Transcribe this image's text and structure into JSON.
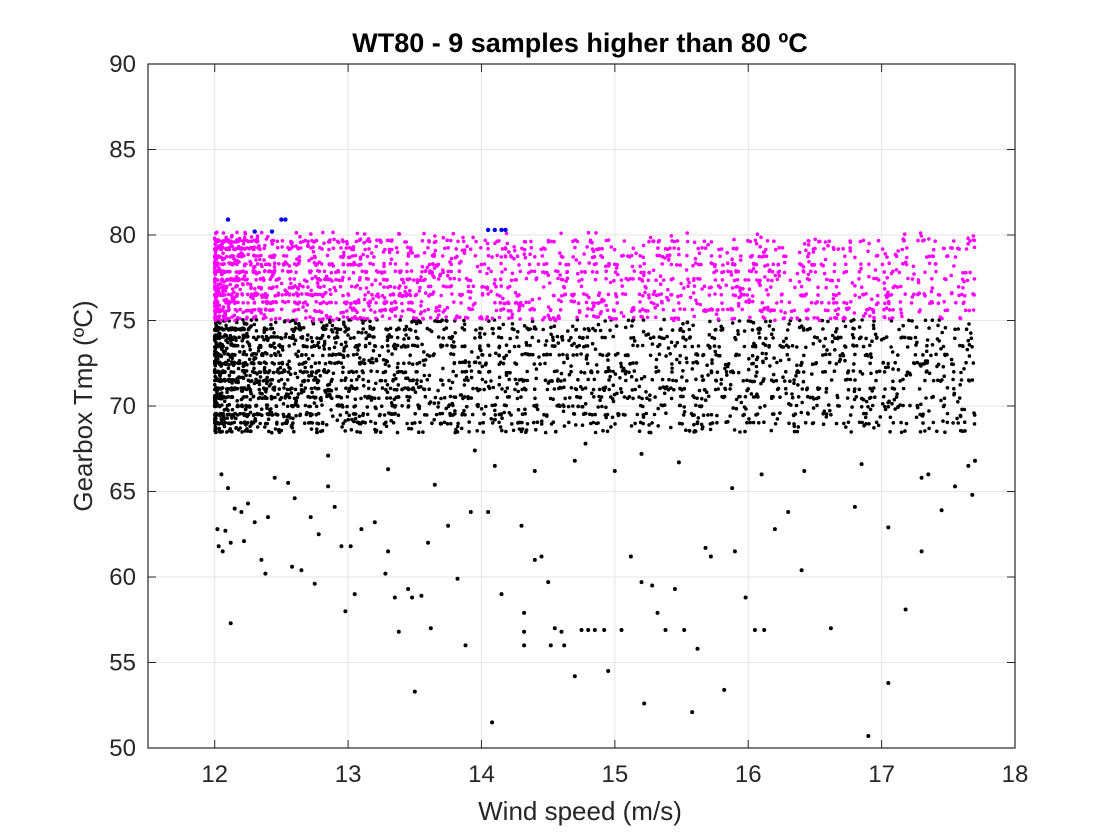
{
  "chart_data": {
    "type": "scatter",
    "title": "WT80 - 9 samples higher than 80 ºC",
    "xlabel": "Wind speed (m/s)",
    "ylabel": "Gearbox Tmp (ºC)",
    "xlim": [
      11.5,
      18
    ],
    "ylim": [
      50,
      90
    ],
    "xticks": [
      12,
      13,
      14,
      15,
      16,
      17,
      18
    ],
    "yticks": [
      50,
      55,
      60,
      65,
      70,
      75,
      80,
      85,
      90
    ],
    "grid": true,
    "series": [
      {
        "color": "#000000",
        "dense_region": {
          "x": [
            12.0,
            17.7
          ],
          "y": [
            68.5,
            75.0
          ]
        },
        "sparse_points": [
          [
            12.05,
            66.0
          ],
          [
            12.1,
            65.2
          ],
          [
            12.15,
            64.0
          ],
          [
            12.2,
            63.8
          ],
          [
            12.25,
            64.3
          ],
          [
            12.3,
            63.2
          ],
          [
            12.02,
            62.8
          ],
          [
            12.08,
            62.7
          ],
          [
            12.12,
            62.0
          ],
          [
            12.03,
            61.8
          ],
          [
            12.06,
            61.5
          ],
          [
            12.22,
            62.1
          ],
          [
            12.35,
            61.0
          ],
          [
            12.38,
            60.2
          ],
          [
            12.58,
            60.6
          ],
          [
            12.65,
            60.4
          ],
          [
            12.75,
            59.6
          ],
          [
            12.12,
            57.3
          ],
          [
            12.4,
            63.5
          ],
          [
            12.45,
            65.8
          ],
          [
            12.55,
            65.5
          ],
          [
            12.6,
            64.6
          ],
          [
            12.72,
            63.5
          ],
          [
            12.78,
            62.5
          ],
          [
            12.85,
            65.3
          ],
          [
            12.9,
            64.1
          ],
          [
            12.95,
            61.8
          ],
          [
            12.98,
            58.0
          ],
          [
            13.05,
            59.0
          ],
          [
            13.02,
            61.8
          ],
          [
            13.1,
            62.8
          ],
          [
            13.2,
            63.2
          ],
          [
            13.28,
            60.2
          ],
          [
            13.3,
            61.5
          ],
          [
            13.35,
            58.8
          ],
          [
            13.38,
            56.8
          ],
          [
            13.45,
            59.3
          ],
          [
            13.5,
            53.3
          ],
          [
            13.48,
            58.8
          ],
          [
            13.55,
            58.9
          ],
          [
            13.6,
            62.0
          ],
          [
            13.62,
            57.0
          ],
          [
            13.75,
            63.0
          ],
          [
            13.82,
            59.9
          ],
          [
            13.88,
            56.0
          ],
          [
            13.92,
            63.8
          ],
          [
            14.05,
            63.8
          ],
          [
            14.08,
            51.5
          ],
          [
            14.15,
            59.0
          ],
          [
            14.3,
            63.0
          ],
          [
            14.32,
            57.9
          ],
          [
            14.32,
            56.8
          ],
          [
            14.32,
            56.0
          ],
          [
            14.4,
            61.0
          ],
          [
            14.45,
            61.2
          ],
          [
            14.5,
            59.7
          ],
          [
            14.52,
            56.0
          ],
          [
            14.55,
            57.0
          ],
          [
            14.6,
            56.8
          ],
          [
            14.62,
            56.0
          ],
          [
            14.7,
            54.2
          ],
          [
            14.75,
            56.9
          ],
          [
            14.8,
            56.9
          ],
          [
            14.85,
            56.9
          ],
          [
            14.92,
            56.9
          ],
          [
            14.95,
            54.5
          ],
          [
            15.05,
            56.9
          ],
          [
            15.12,
            61.2
          ],
          [
            15.2,
            59.7
          ],
          [
            15.22,
            52.6
          ],
          [
            15.28,
            59.5
          ],
          [
            15.32,
            57.9
          ],
          [
            15.38,
            56.9
          ],
          [
            15.45,
            59.3
          ],
          [
            15.52,
            56.9
          ],
          [
            15.58,
            52.1
          ],
          [
            15.62,
            55.8
          ],
          [
            15.68,
            61.7
          ],
          [
            15.72,
            61.2
          ],
          [
            15.82,
            53.4
          ],
          [
            15.9,
            61.5
          ],
          [
            15.98,
            58.8
          ],
          [
            16.05,
            56.9
          ],
          [
            16.12,
            56.9
          ],
          [
            16.2,
            62.8
          ],
          [
            16.3,
            63.8
          ],
          [
            16.4,
            60.4
          ],
          [
            16.62,
            57.0
          ],
          [
            16.8,
            64.1
          ],
          [
            16.9,
            50.7
          ],
          [
            17.05,
            53.8
          ],
          [
            17.05,
            62.9
          ],
          [
            17.18,
            58.1
          ],
          [
            17.3,
            61.5
          ],
          [
            17.45,
            63.9
          ],
          [
            17.55,
            65.3
          ],
          [
            17.65,
            66.5
          ],
          [
            17.7,
            66.8
          ],
          [
            17.68,
            64.8
          ],
          [
            17.35,
            66.0
          ],
          [
            17.3,
            65.8
          ],
          [
            16.85,
            66.6
          ],
          [
            16.42,
            66.2
          ],
          [
            15.88,
            65.2
          ],
          [
            15.48,
            66.7
          ],
          [
            15.2,
            67.2
          ],
          [
            14.78,
            67.8
          ],
          [
            14.7,
            66.8
          ],
          [
            14.4,
            66.2
          ],
          [
            14.1,
            66.5
          ],
          [
            13.65,
            65.4
          ],
          [
            13.3,
            66.3
          ],
          [
            12.85,
            67.1
          ],
          [
            13.95,
            67.4
          ],
          [
            15.0,
            66.2
          ],
          [
            16.1,
            66.0
          ]
        ]
      },
      {
        "color": "#ff00ff",
        "dense_region": {
          "x": [
            12.0,
            17.7
          ],
          "y": [
            75.0,
            80.0
          ]
        }
      },
      {
        "color": "#0000ff",
        "points": [
          [
            12.1,
            80.9
          ],
          [
            12.3,
            80.2
          ],
          [
            12.43,
            80.2
          ],
          [
            12.5,
            80.9
          ],
          [
            12.53,
            80.9
          ],
          [
            14.05,
            80.3
          ],
          [
            14.1,
            80.3
          ],
          [
            14.15,
            80.3
          ],
          [
            14.18,
            80.3
          ]
        ]
      }
    ]
  }
}
